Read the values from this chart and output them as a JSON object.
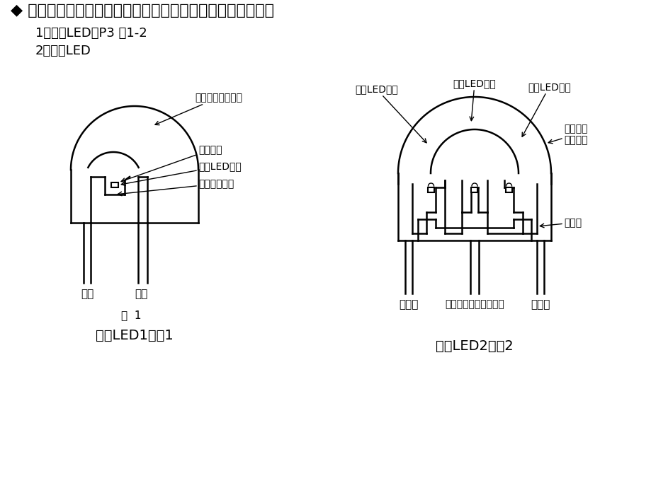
{
  "title": "◆ 发光二极管的构成：管芯支架、管芯晶片、金线、环氧树脂",
  "subtitle1": "1）单色LED：P3 图1-2",
  "subtitle2": "2）白光LED",
  "caption1": "白光LED1：图1",
  "caption2": "白光LED2：图2",
  "fig_label": "图  1",
  "ann_molded1": "模制树脂（透镜）",
  "ann_phosphor": "荪光体层",
  "ann_blue_chip": "蓝色LED芯片",
  "ann_reflector": "端子兼反光板",
  "ann_anode": "阳极",
  "ann_cathode": "阴极",
  "ann_red_chip": "红色LED芯片",
  "ann_green_chip": "绿色LED芯片",
  "ann_blue_chip2": "蓝色LED芯片",
  "ann_molded2a": "模制树脂",
  "ann_molded2b": "（透明）",
  "ann_blue_anode": "蓝阳极",
  "ann_common": "公共阴极端子兼反射板",
  "ann_green_anode": "绿阳极",
  "ann_red_anode": "红阳极",
  "bg_color": "#ffffff",
  "lc": "#000000",
  "tc": "#000000"
}
